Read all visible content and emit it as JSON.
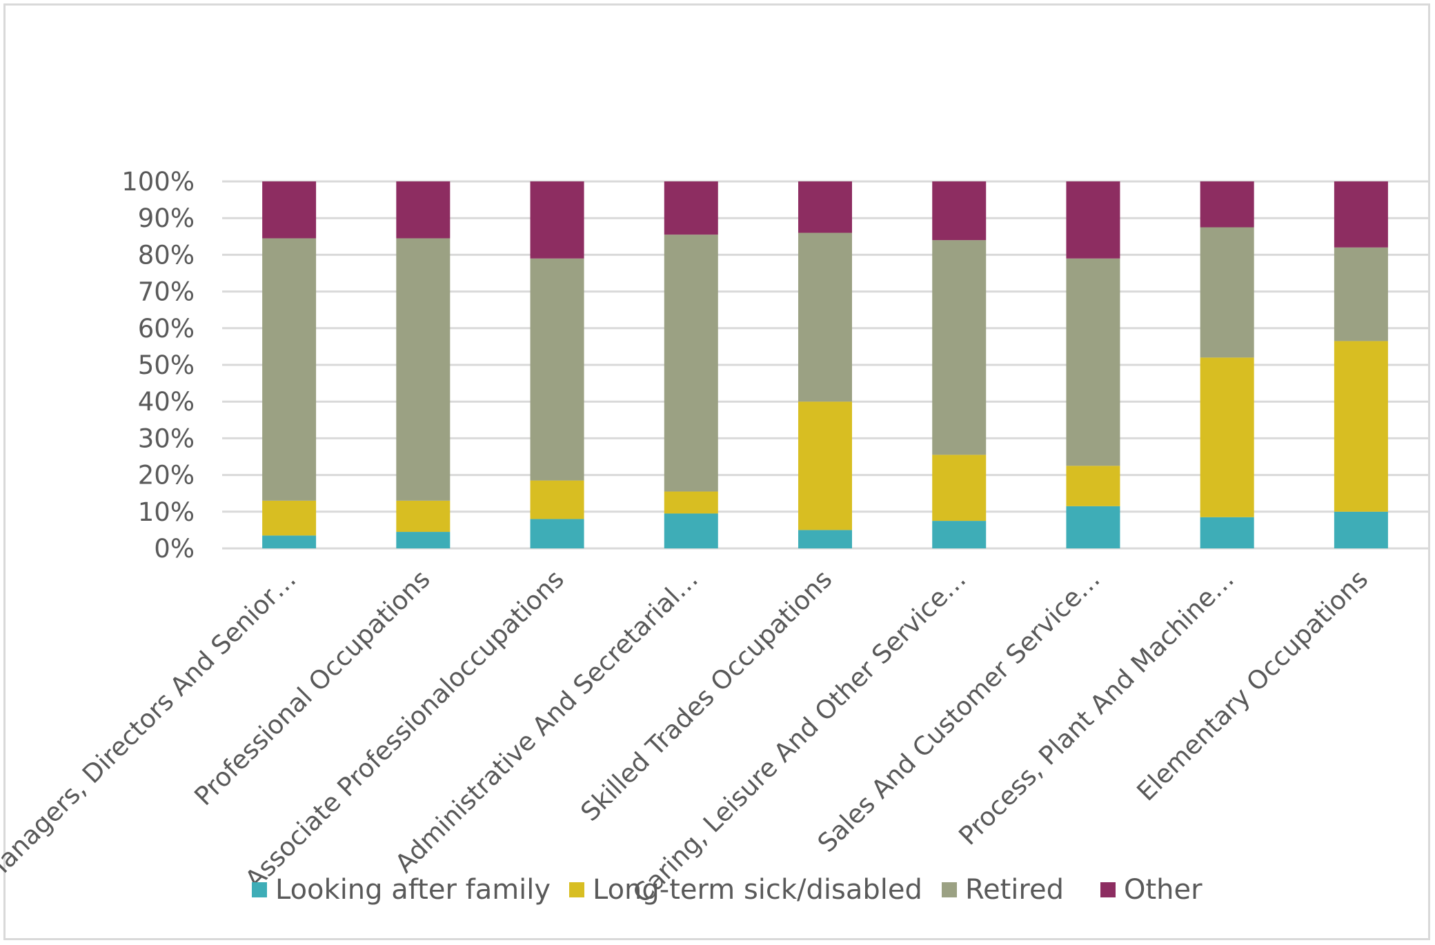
{
  "chart_data": {
    "type": "bar",
    "stacked": true,
    "categories": [
      "Managers, Directors And Senior…",
      "Professional Occupations",
      "Associate Professionaloccupations",
      "Administrative And Secretarial…",
      "Skilled Trades Occupations",
      "Caring, Leisure And Other Service…",
      "Sales And Customer Service…",
      "Process, Plant And Machine…",
      "Elementary Occupations"
    ],
    "series": [
      {
        "name": "Looking after family",
        "color": "#3EADB7",
        "values": [
          3.5,
          4.5,
          8.0,
          9.5,
          5.0,
          7.5,
          11.5,
          8.5,
          10.0
        ]
      },
      {
        "name": "Long-term sick/disabled",
        "color": "#D8BE22",
        "values": [
          9.5,
          8.5,
          10.5,
          6.0,
          35.0,
          18.0,
          11.0,
          43.5,
          46.5
        ]
      },
      {
        "name": "Retired",
        "color": "#9BA183",
        "values": [
          71.5,
          71.5,
          60.5,
          70.0,
          46.0,
          58.5,
          56.5,
          35.5,
          25.5
        ]
      },
      {
        "name": "Other",
        "color": "#8D2D61",
        "values": [
          15.5,
          15.5,
          21.0,
          14.5,
          14.0,
          16.0,
          21.0,
          12.5,
          18.0
        ]
      }
    ],
    "ylim": [
      0,
      100
    ],
    "yticks": [
      "0%",
      "10%",
      "20%",
      "30%",
      "40%",
      "50%",
      "60%",
      "70%",
      "80%",
      "90%",
      "100%"
    ],
    "grid": true,
    "legend_position": "bottom",
    "title": "",
    "xlabel": "",
    "ylabel": ""
  }
}
